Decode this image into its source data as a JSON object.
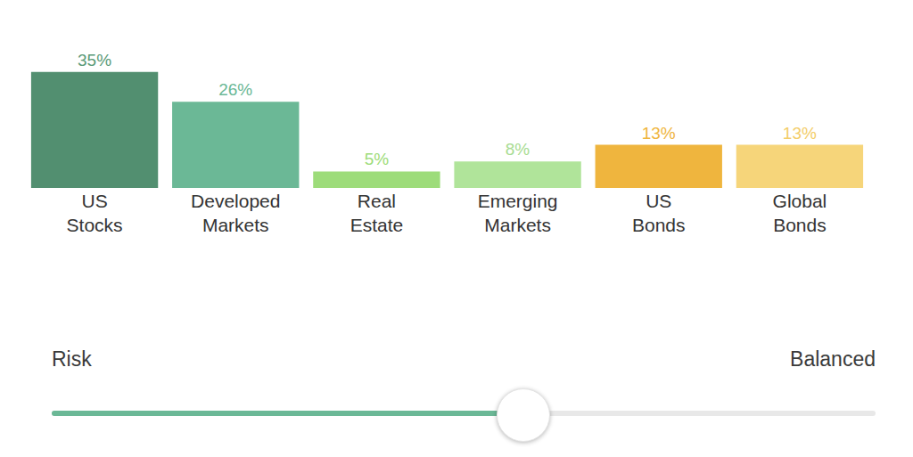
{
  "chart_data": {
    "type": "bar",
    "categories": [
      "US Stocks",
      "Developed Markets",
      "Real Estate",
      "Emerging Markets",
      "US Bonds",
      "Global Bonds"
    ],
    "values": [
      35,
      26,
      5,
      8,
      13,
      13
    ],
    "value_labels": [
      "35%",
      "26%",
      "5%",
      "8%",
      "13%",
      "13%"
    ],
    "colors": [
      "#528f70",
      "#6bb896",
      "#9ddc7a",
      "#b0e49a",
      "#efb53e",
      "#f6d57a"
    ],
    "ylim": [
      0,
      40
    ],
    "data_labels": true,
    "tick_labels": "x",
    "grid": false
  },
  "slider": {
    "left_label": "Risk",
    "right_label": "Balanced"
  }
}
